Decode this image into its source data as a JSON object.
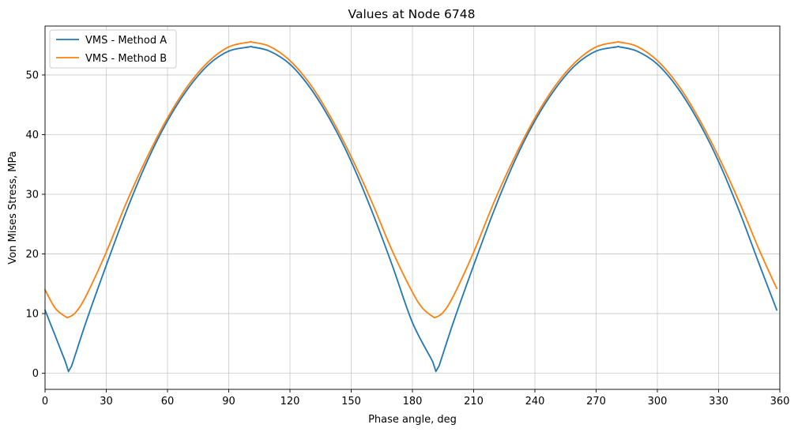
{
  "chart_data": {
    "type": "line",
    "title": "Values at Node 6748",
    "xlabel": "Phase angle, deg",
    "ylabel": "Von Mises Stress, MPa",
    "xlim": [
      0,
      360
    ],
    "ylim": [
      -2.7,
      58.2
    ],
    "xticks": [
      0,
      30,
      60,
      90,
      120,
      150,
      180,
      210,
      240,
      270,
      300,
      330,
      360
    ],
    "yticks": [
      0,
      10,
      20,
      30,
      40,
      50
    ],
    "grid": true,
    "legend_position": "top-left",
    "series": [
      {
        "name": "VMS - Method A",
        "color": "#1f77b4",
        "x": [
          0,
          10,
          11.5,
          13,
          20,
          30,
          40,
          50,
          60,
          70,
          80,
          90,
          100,
          101.5,
          110,
          120,
          130,
          140,
          150,
          160,
          170,
          180,
          190,
          191.5,
          193,
          200,
          210,
          220,
          230,
          240,
          250,
          260,
          270,
          280,
          281.5,
          290,
          300,
          310,
          320,
          330,
          340,
          350,
          358.5
        ],
        "y": [
          10.6,
          1.9,
          0.3,
          1.2,
          8.5,
          18.1,
          27.3,
          35.5,
          42.3,
          47.7,
          51.7,
          54.0,
          54.7,
          54.7,
          54.0,
          51.8,
          47.8,
          42.3,
          35.5,
          27.3,
          18.2,
          8.5,
          1.9,
          0.3,
          1.2,
          8.5,
          18.1,
          27.3,
          35.5,
          42.3,
          47.7,
          51.7,
          54.0,
          54.7,
          54.7,
          54.0,
          51.8,
          47.8,
          42.3,
          35.5,
          27.3,
          18.2,
          10.6
        ]
      },
      {
        "name": "VMS - Method B",
        "color": "#ff7f0e",
        "x": [
          0,
          5,
          10,
          11.5,
          15,
          20,
          30,
          40,
          50,
          60,
          70,
          80,
          90,
          100,
          101.5,
          110,
          120,
          130,
          140,
          150,
          160,
          170,
          180,
          185,
          190,
          191.5,
          195,
          200,
          210,
          220,
          230,
          240,
          250,
          260,
          270,
          280,
          281.5,
          290,
          300,
          310,
          320,
          330,
          340,
          350,
          358.5
        ],
        "y": [
          14.0,
          10.9,
          9.5,
          9.4,
          10.2,
          12.9,
          20.3,
          28.7,
          36.2,
          42.8,
          48.2,
          52.2,
          54.7,
          55.5,
          55.5,
          54.8,
          52.4,
          48.4,
          42.9,
          36.3,
          28.8,
          20.6,
          13.6,
          10.9,
          9.5,
          9.4,
          10.2,
          12.9,
          20.3,
          28.7,
          36.2,
          42.8,
          48.2,
          52.2,
          54.7,
          55.5,
          55.5,
          54.8,
          52.4,
          48.4,
          42.9,
          36.3,
          28.8,
          20.6,
          14.2
        ]
      }
    ]
  }
}
